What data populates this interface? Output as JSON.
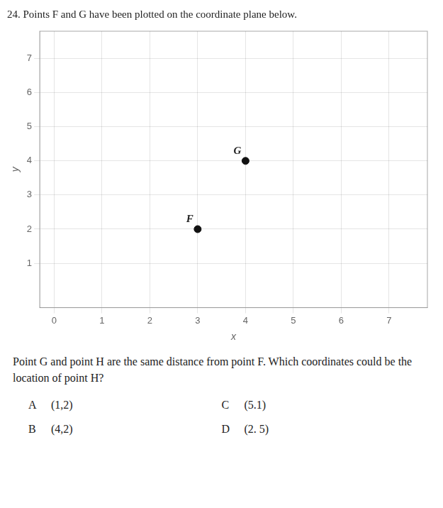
{
  "chart_data": {
    "type": "scatter",
    "title": "24. Points F and G have been plotted on the coordinate plane below.",
    "x": [
      3,
      4
    ],
    "values": [
      2,
      4
    ],
    "point_labels": [
      "F",
      "G"
    ],
    "color": "#111111",
    "marker": "circle",
    "xlabel": "x",
    "ylabel": "y",
    "xlim": [
      -0.3,
      7.8
    ],
    "ylim": [
      -0.3,
      7.8
    ],
    "xticks": [
      0,
      1,
      2,
      3,
      4,
      5,
      6,
      7
    ],
    "yticks": [
      1,
      2,
      3,
      4,
      5,
      6,
      7
    ],
    "grid": true,
    "annotations": [
      "Point G and point H are the same distance from point F. Which coordinates could be the location of point H?"
    ],
    "choices": [
      [
        "A",
        "(1,2)"
      ],
      [
        "C",
        "(5.1)"
      ],
      [
        "B",
        "(4,2)"
      ],
      [
        "D",
        "(2. 5)"
      ]
    ]
  }
}
